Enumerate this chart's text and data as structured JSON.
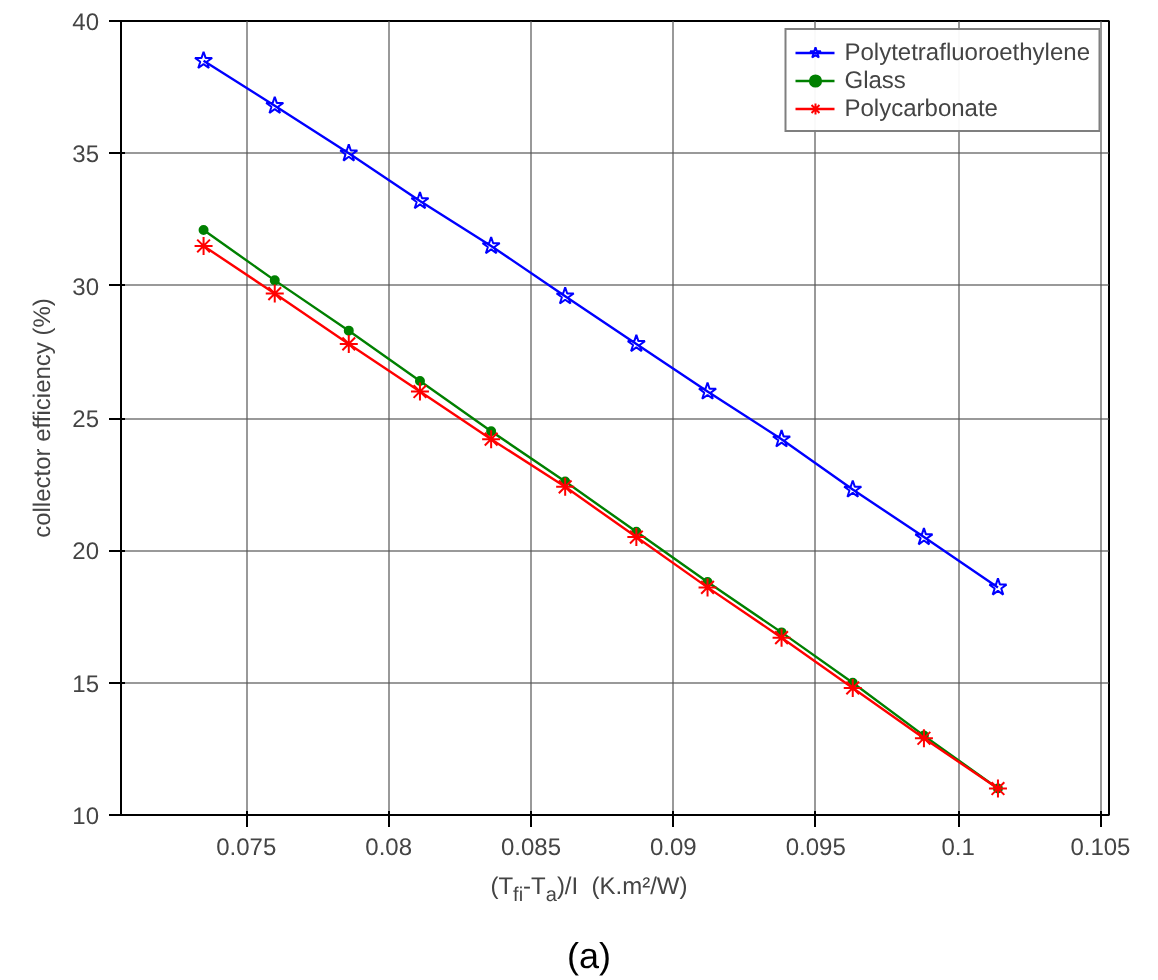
{
  "chart_data": {
    "type": "line",
    "xlabel": "(T$_{fi}$-T$_{a}$)/I  (K.m²/W)",
    "ylabel": "collector efficiency (%)",
    "x": [
      0.0735,
      0.076,
      0.0786,
      0.0811,
      0.0836,
      0.0862,
      0.0887,
      0.0912,
      0.0938,
      0.0963,
      0.0988,
      0.1014
    ],
    "series": [
      {
        "name": "Polytetrafluoroethylene",
        "color": "#0000ff",
        "marker": "star",
        "values": [
          38.5,
          36.8,
          35.0,
          33.2,
          31.5,
          29.6,
          27.8,
          26.0,
          24.2,
          22.3,
          20.5,
          18.6
        ]
      },
      {
        "name": "Glass",
        "color": "#008000",
        "marker": "circle",
        "values": [
          32.1,
          30.2,
          28.3,
          26.4,
          24.5,
          22.6,
          20.7,
          18.8,
          16.9,
          15.0,
          13.0,
          11.0
        ]
      },
      {
        "name": "Polycarbonate",
        "color": "#ff0000",
        "marker": "cross",
        "values": [
          31.5,
          29.7,
          27.8,
          26.0,
          24.2,
          22.4,
          20.5,
          18.6,
          16.7,
          14.8,
          12.9,
          11.0
        ]
      }
    ],
    "xlim": [
      0.0706,
      0.1053
    ],
    "xticks": [
      {
        "value": 0.075,
        "label": "0.075"
      },
      {
        "value": 0.08,
        "label": "0.08"
      },
      {
        "value": 0.085,
        "label": "0.085"
      },
      {
        "value": 0.09,
        "label": "0.09"
      },
      {
        "value": 0.095,
        "label": "0.095"
      },
      {
        "value": 0.1,
        "label": "0.1"
      },
      {
        "value": 0.105,
        "label": "0.105"
      }
    ],
    "ylim": [
      10,
      40
    ],
    "yticks": [
      10,
      15,
      20,
      25,
      30,
      35,
      40
    ],
    "grid": true,
    "legend": "top right",
    "line_style": "solid",
    "annotations": [
      "(a)"
    ]
  }
}
